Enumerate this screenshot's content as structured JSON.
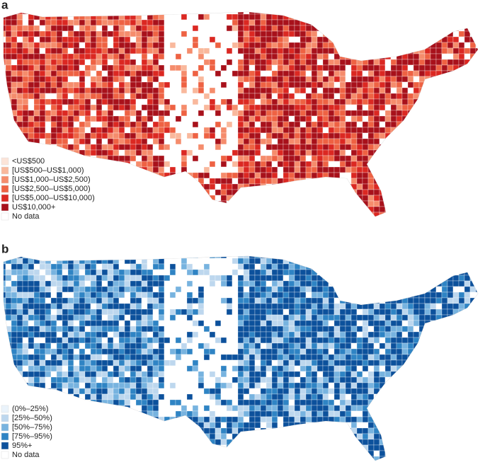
{
  "panels": [
    {
      "label": "a",
      "legend": [
        {
          "name": "<US$500",
          "color": "#fce4d8"
        },
        {
          "name": "[US$500–US$1,000)",
          "color": "#f9b89c"
        },
        {
          "name": "[US$1,000–US$2,500)",
          "color": "#f58c6c"
        },
        {
          "name": "[US$2,500–US$5,000)",
          "color": "#ee6243"
        },
        {
          "name": "[US$5,000–US$10,000)",
          "color": "#db2822"
        },
        {
          "name": "US$10,000+",
          "color": "#a8111b"
        },
        {
          "name": "No data",
          "color": "#ffffff"
        }
      ]
    },
    {
      "label": "b",
      "legend": [
        {
          "name": "(0%–25%)",
          "color": "#eaf3fb"
        },
        {
          "name": "[25%–50%)",
          "color": "#bdd7ee"
        },
        {
          "name": "[50%–75%)",
          "color": "#77b3df"
        },
        {
          "name": "[75%–95%)",
          "color": "#2f84c4"
        },
        {
          "name": "95%+",
          "color": "#0c519c"
        },
        {
          "name": "No data",
          "color": "#ffffff"
        }
      ]
    }
  ]
}
